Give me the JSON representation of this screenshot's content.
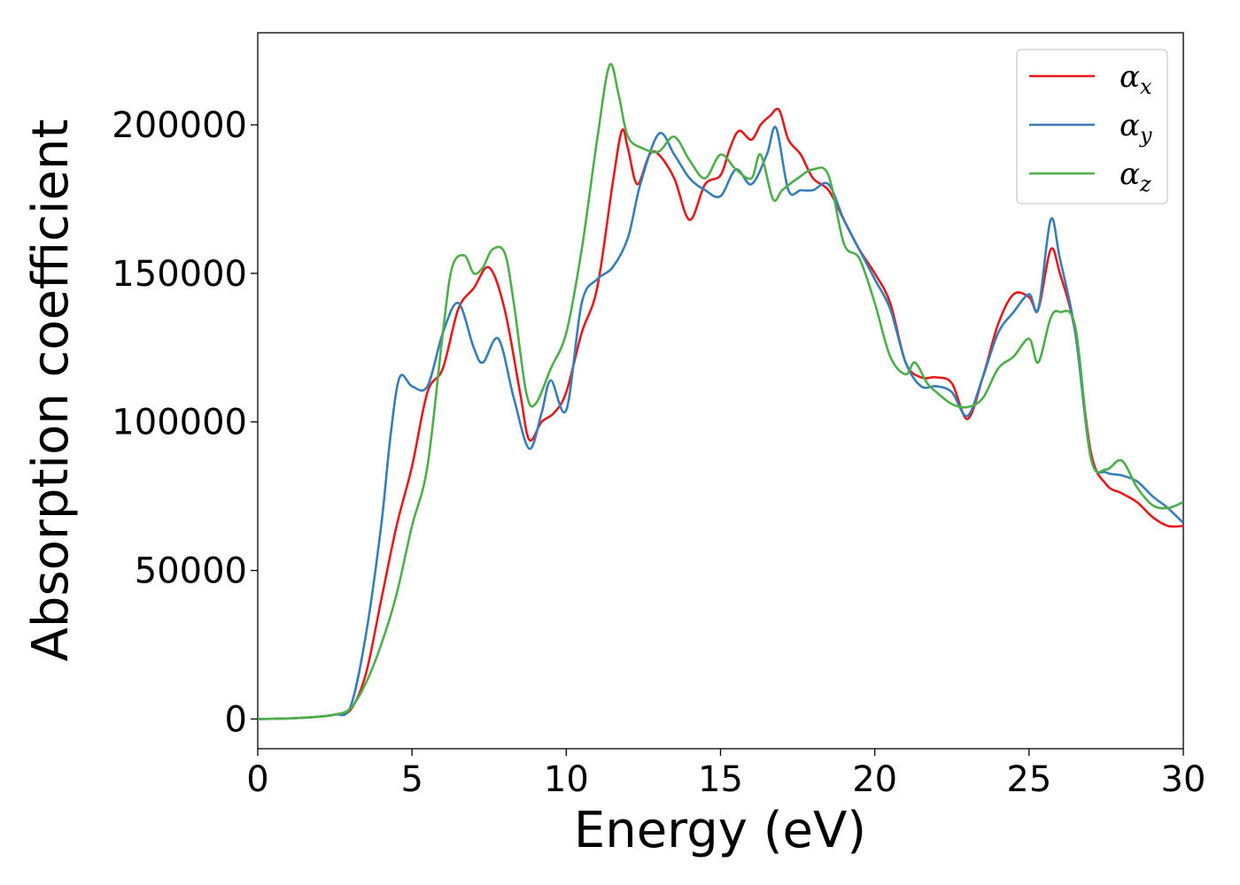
{
  "chart_data": {
    "type": "line",
    "title": "",
    "xlabel": "Energy (eV)",
    "ylabel": "Absorption coefficient",
    "xlim": [
      0,
      30
    ],
    "ylim": [
      -10000,
      231000
    ],
    "xticks": [
      0,
      5,
      10,
      15,
      20,
      25,
      30
    ],
    "yticks": [
      0,
      50000,
      100000,
      150000,
      200000
    ],
    "grid": false,
    "legend_position": "top-right",
    "series": [
      {
        "name": "αx",
        "symbol": "α",
        "subscript": "x",
        "color": "#e41a1c",
        "x": [
          0,
          1,
          2,
          2.5,
          3,
          3.5,
          4,
          4.5,
          5,
          5.5,
          6,
          6.5,
          7,
          7.5,
          8,
          8.5,
          8.8,
          9.2,
          9.6,
          10,
          10.5,
          11,
          11.5,
          11.8,
          12,
          12.3,
          12.7,
          13,
          13.5,
          14,
          14.5,
          15,
          15.3,
          15.6,
          16,
          16.3,
          16.6,
          16.9,
          17.2,
          17.6,
          18,
          18.5,
          19,
          19.5,
          20,
          20.5,
          21,
          21.5,
          22,
          22.5,
          23,
          23.5,
          24,
          24.5,
          25,
          25.3,
          25.7,
          26,
          26.5,
          27,
          27.5,
          28,
          28.5,
          29,
          29.5,
          30
        ],
        "y": [
          0,
          200,
          800,
          1500,
          3000,
          15000,
          40000,
          65000,
          85000,
          110000,
          118000,
          138000,
          145000,
          152000,
          138000,
          110000,
          94000,
          100000,
          103000,
          110000,
          130000,
          145000,
          180000,
          198000,
          192000,
          180000,
          190000,
          190000,
          182000,
          168000,
          180000,
          183000,
          192000,
          198000,
          195000,
          200000,
          203000,
          205000,
          195000,
          190000,
          182000,
          178000,
          168000,
          158000,
          150000,
          140000,
          120000,
          115000,
          115000,
          113000,
          101000,
          115000,
          133000,
          143000,
          142000,
          138000,
          158000,
          150000,
          130000,
          90000,
          79000,
          76000,
          73000,
          68000,
          65000,
          65000
        ]
      },
      {
        "name": "αy",
        "symbol": "α",
        "subscript": "y",
        "color": "#377eb8",
        "x": [
          0,
          1,
          2,
          2.5,
          3,
          3.5,
          4,
          4.3,
          4.6,
          5,
          5.5,
          6,
          6.5,
          7,
          7.3,
          7.8,
          8.3,
          8.8,
          9.2,
          9.5,
          10,
          10.5,
          11,
          11.5,
          12,
          12.4,
          13,
          13.5,
          14,
          14.5,
          15,
          15.5,
          16,
          16.5,
          16.8,
          17.2,
          17.6,
          18,
          18.5,
          19,
          19.5,
          20,
          20.5,
          21,
          21.5,
          22,
          22.5,
          23,
          23.5,
          24,
          24.5,
          25,
          25.3,
          25.7,
          26,
          26.5,
          27,
          27.5,
          28,
          28.5,
          29,
          29.5,
          30
        ],
        "y": [
          0,
          200,
          800,
          1500,
          4000,
          28000,
          65000,
          95000,
          115000,
          112000,
          112000,
          130000,
          140000,
          125000,
          120000,
          128000,
          108000,
          91000,
          103000,
          114000,
          104000,
          140000,
          148000,
          152000,
          162000,
          180000,
          197000,
          190000,
          182000,
          178000,
          176000,
          185000,
          180000,
          190000,
          199000,
          178000,
          178000,
          178000,
          180000,
          168000,
          158000,
          148000,
          138000,
          120000,
          112000,
          112000,
          110000,
          102000,
          115000,
          130000,
          137000,
          143000,
          138000,
          168000,
          155000,
          130000,
          88000,
          83000,
          82000,
          80000,
          75000,
          71000,
          66000
        ]
      },
      {
        "name": "αz",
        "symbol": "α",
        "subscript": "z",
        "color": "#4daf4a",
        "x": [
          0,
          1,
          2,
          2.5,
          3,
          3.5,
          4,
          4.5,
          5,
          5.5,
          6,
          6.3,
          6.7,
          7,
          7.3,
          7.6,
          8,
          8.3,
          8.7,
          9,
          9.5,
          10,
          10.5,
          11,
          11.4,
          11.7,
          12,
          12.5,
          13,
          13.5,
          14,
          14.5,
          15,
          15.5,
          16,
          16.3,
          16.7,
          17,
          17.5,
          18,
          18.5,
          19,
          19.5,
          20,
          20.5,
          21,
          21.3,
          21.7,
          22,
          22.5,
          23,
          23.5,
          24,
          24.5,
          25,
          25.3,
          25.7,
          26,
          26.5,
          27,
          27.5,
          28,
          28.5,
          29,
          29.5,
          30
        ],
        "y": [
          0,
          200,
          800,
          1500,
          3500,
          12000,
          25000,
          42000,
          65000,
          85000,
          130000,
          152000,
          156000,
          150000,
          152000,
          158000,
          157000,
          140000,
          110000,
          106000,
          118000,
          130000,
          158000,
          195000,
          220000,
          210000,
          196000,
          192000,
          191000,
          196000,
          188000,
          182000,
          190000,
          185000,
          182000,
          190000,
          175000,
          178000,
          182000,
          185000,
          183000,
          160000,
          155000,
          140000,
          122000,
          116000,
          120000,
          113000,
          110000,
          106000,
          105000,
          108000,
          118000,
          122000,
          128000,
          120000,
          135000,
          137000,
          132000,
          88000,
          84000,
          87000,
          78000,
          72000,
          71000,
          73000
        ]
      }
    ]
  }
}
